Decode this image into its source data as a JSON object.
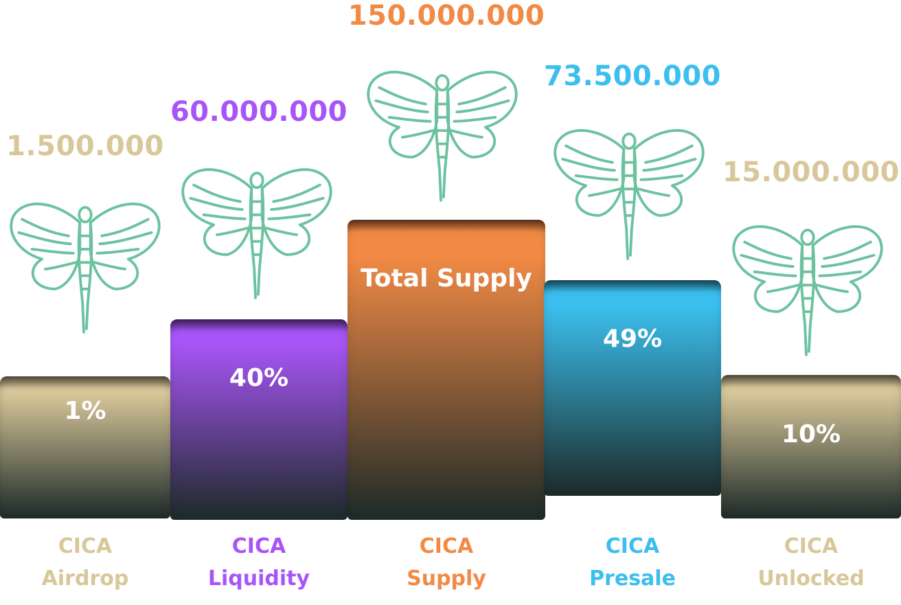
{
  "chart_data": {
    "type": "bar",
    "categories": [
      "CICA Airdrop",
      "CICA Liquidity",
      "CICA Supply",
      "CICA Presale",
      "CICA Unlocked"
    ],
    "category_lines": [
      [
        "CICA",
        "Airdrop"
      ],
      [
        "CICA",
        "Liquidity"
      ],
      [
        "CICA",
        "Supply"
      ],
      [
        "CICA",
        "Presale"
      ],
      [
        "CICA",
        "Unlocked"
      ]
    ],
    "values": [
      1500000,
      60000000,
      150000000,
      73500000,
      15000000
    ],
    "value_labels": [
      "1.500.000",
      "60.000.000",
      "150.000.000",
      "73.500.000",
      "15.000.000"
    ],
    "bar_labels": [
      "1%",
      "40%",
      "Total Supply",
      "49%",
      "10%"
    ],
    "colors": [
      "#d8c79a",
      "#a855f7",
      "#f28a45",
      "#3bbfee",
      "#d8c79a"
    ],
    "icon": "moth-icon",
    "icon_color": "#6cc2a0"
  }
}
